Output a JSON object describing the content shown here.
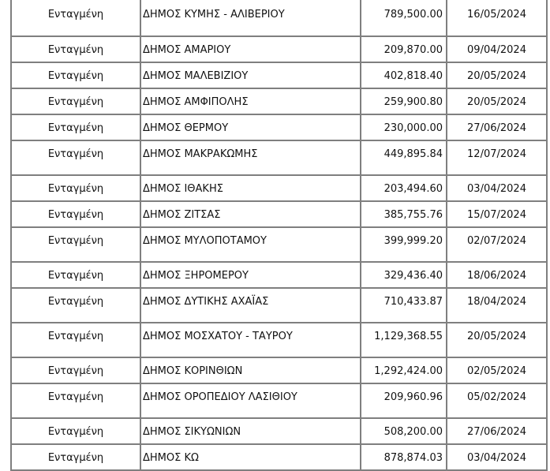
{
  "rows": [
    {
      "status": "Ενταγμένη",
      "name": "ΔΗΜΟΣ ΚΥΜΗΣ - ΑΛΙΒΕΡΙΟΥ",
      "amount": "789,500.00",
      "date": "16/05/2024"
    },
    {
      "status": "Ενταγμένη",
      "name": "ΔΗΜΟΣ ΑΜΑΡΙΟΥ",
      "amount": "209,870.00",
      "date": "09/04/2024"
    },
    {
      "status": "Ενταγμένη",
      "name": "ΔΗΜΟΣ ΜΑΛΕΒΙΖΙΟΥ",
      "amount": "402,818.40",
      "date": "20/05/2024"
    },
    {
      "status": "Ενταγμένη",
      "name": "ΔΗΜΟΣ ΑΜΦΙΠΟΛΗΣ",
      "amount": "259,900.80",
      "date": "20/05/2024"
    },
    {
      "status": "Ενταγμένη",
      "name": "ΔΗΜΟΣ ΘΕΡΜΟΥ",
      "amount": "230,000.00",
      "date": "27/06/2024"
    },
    {
      "status": "Ενταγμένη",
      "name": "ΔΗΜΟΣ ΜΑΚΡΑΚΩΜΗΣ",
      "amount": "449,895.84",
      "date": "12/07/2024"
    },
    {
      "status": "Ενταγμένη",
      "name": "ΔΗΜΟΣ ΙΘΑΚΗΣ",
      "amount": "203,494.60",
      "date": "03/04/2024"
    },
    {
      "status": "Ενταγμένη",
      "name": "ΔΗΜΟΣ ΖΙΤΣΑΣ",
      "amount": "385,755.76",
      "date": "15/07/2024"
    },
    {
      "status": "Ενταγμένη",
      "name": "ΔΗΜΟΣ ΜΥΛΟΠΟΤΑΜΟΥ",
      "amount": "399,999.20",
      "date": "02/07/2024"
    },
    {
      "status": "Ενταγμένη",
      "name": "ΔΗΜΟΣ ΞΗΡΟΜΕΡΟΥ",
      "amount": "329,436.40",
      "date": "18/06/2024"
    },
    {
      "status": "Ενταγμένη",
      "name": "ΔΗΜΟΣ ΔΥΤΙΚΗΣ ΑΧΑΪΑΣ",
      "amount": "710,433.87",
      "date": "18/04/2024"
    },
    {
      "status": "Ενταγμένη",
      "name": "ΔΗΜΟΣ ΜΟΣΧΑΤΟΥ - ΤΑΥΡΟΥ",
      "amount": "1,129,368.55",
      "date": "20/05/2024"
    },
    {
      "status": "Ενταγμένη",
      "name": "ΔΗΜΟΣ ΚΟΡΙΝΘΙΩΝ",
      "amount": "1,292,424.00",
      "date": "02/05/2024"
    },
    {
      "status": "Ενταγμένη",
      "name": "ΔΗΜΟΣ ΟΡΟΠΕΔΙΟΥ ΛΑΣΙΘΙΟΥ",
      "amount": "209,960.96",
      "date": "05/02/2024"
    },
    {
      "status": "Ενταγμένη",
      "name": "ΔΗΜΟΣ ΣΙΚΥΩΝΙΩΝ",
      "amount": "508,200.00",
      "date": "27/06/2024"
    },
    {
      "status": "Ενταγμένη",
      "name": "ΔΗΜΟΣ ΚΩ",
      "amount": "878,874.03",
      "date": "03/04/2024"
    }
  ]
}
